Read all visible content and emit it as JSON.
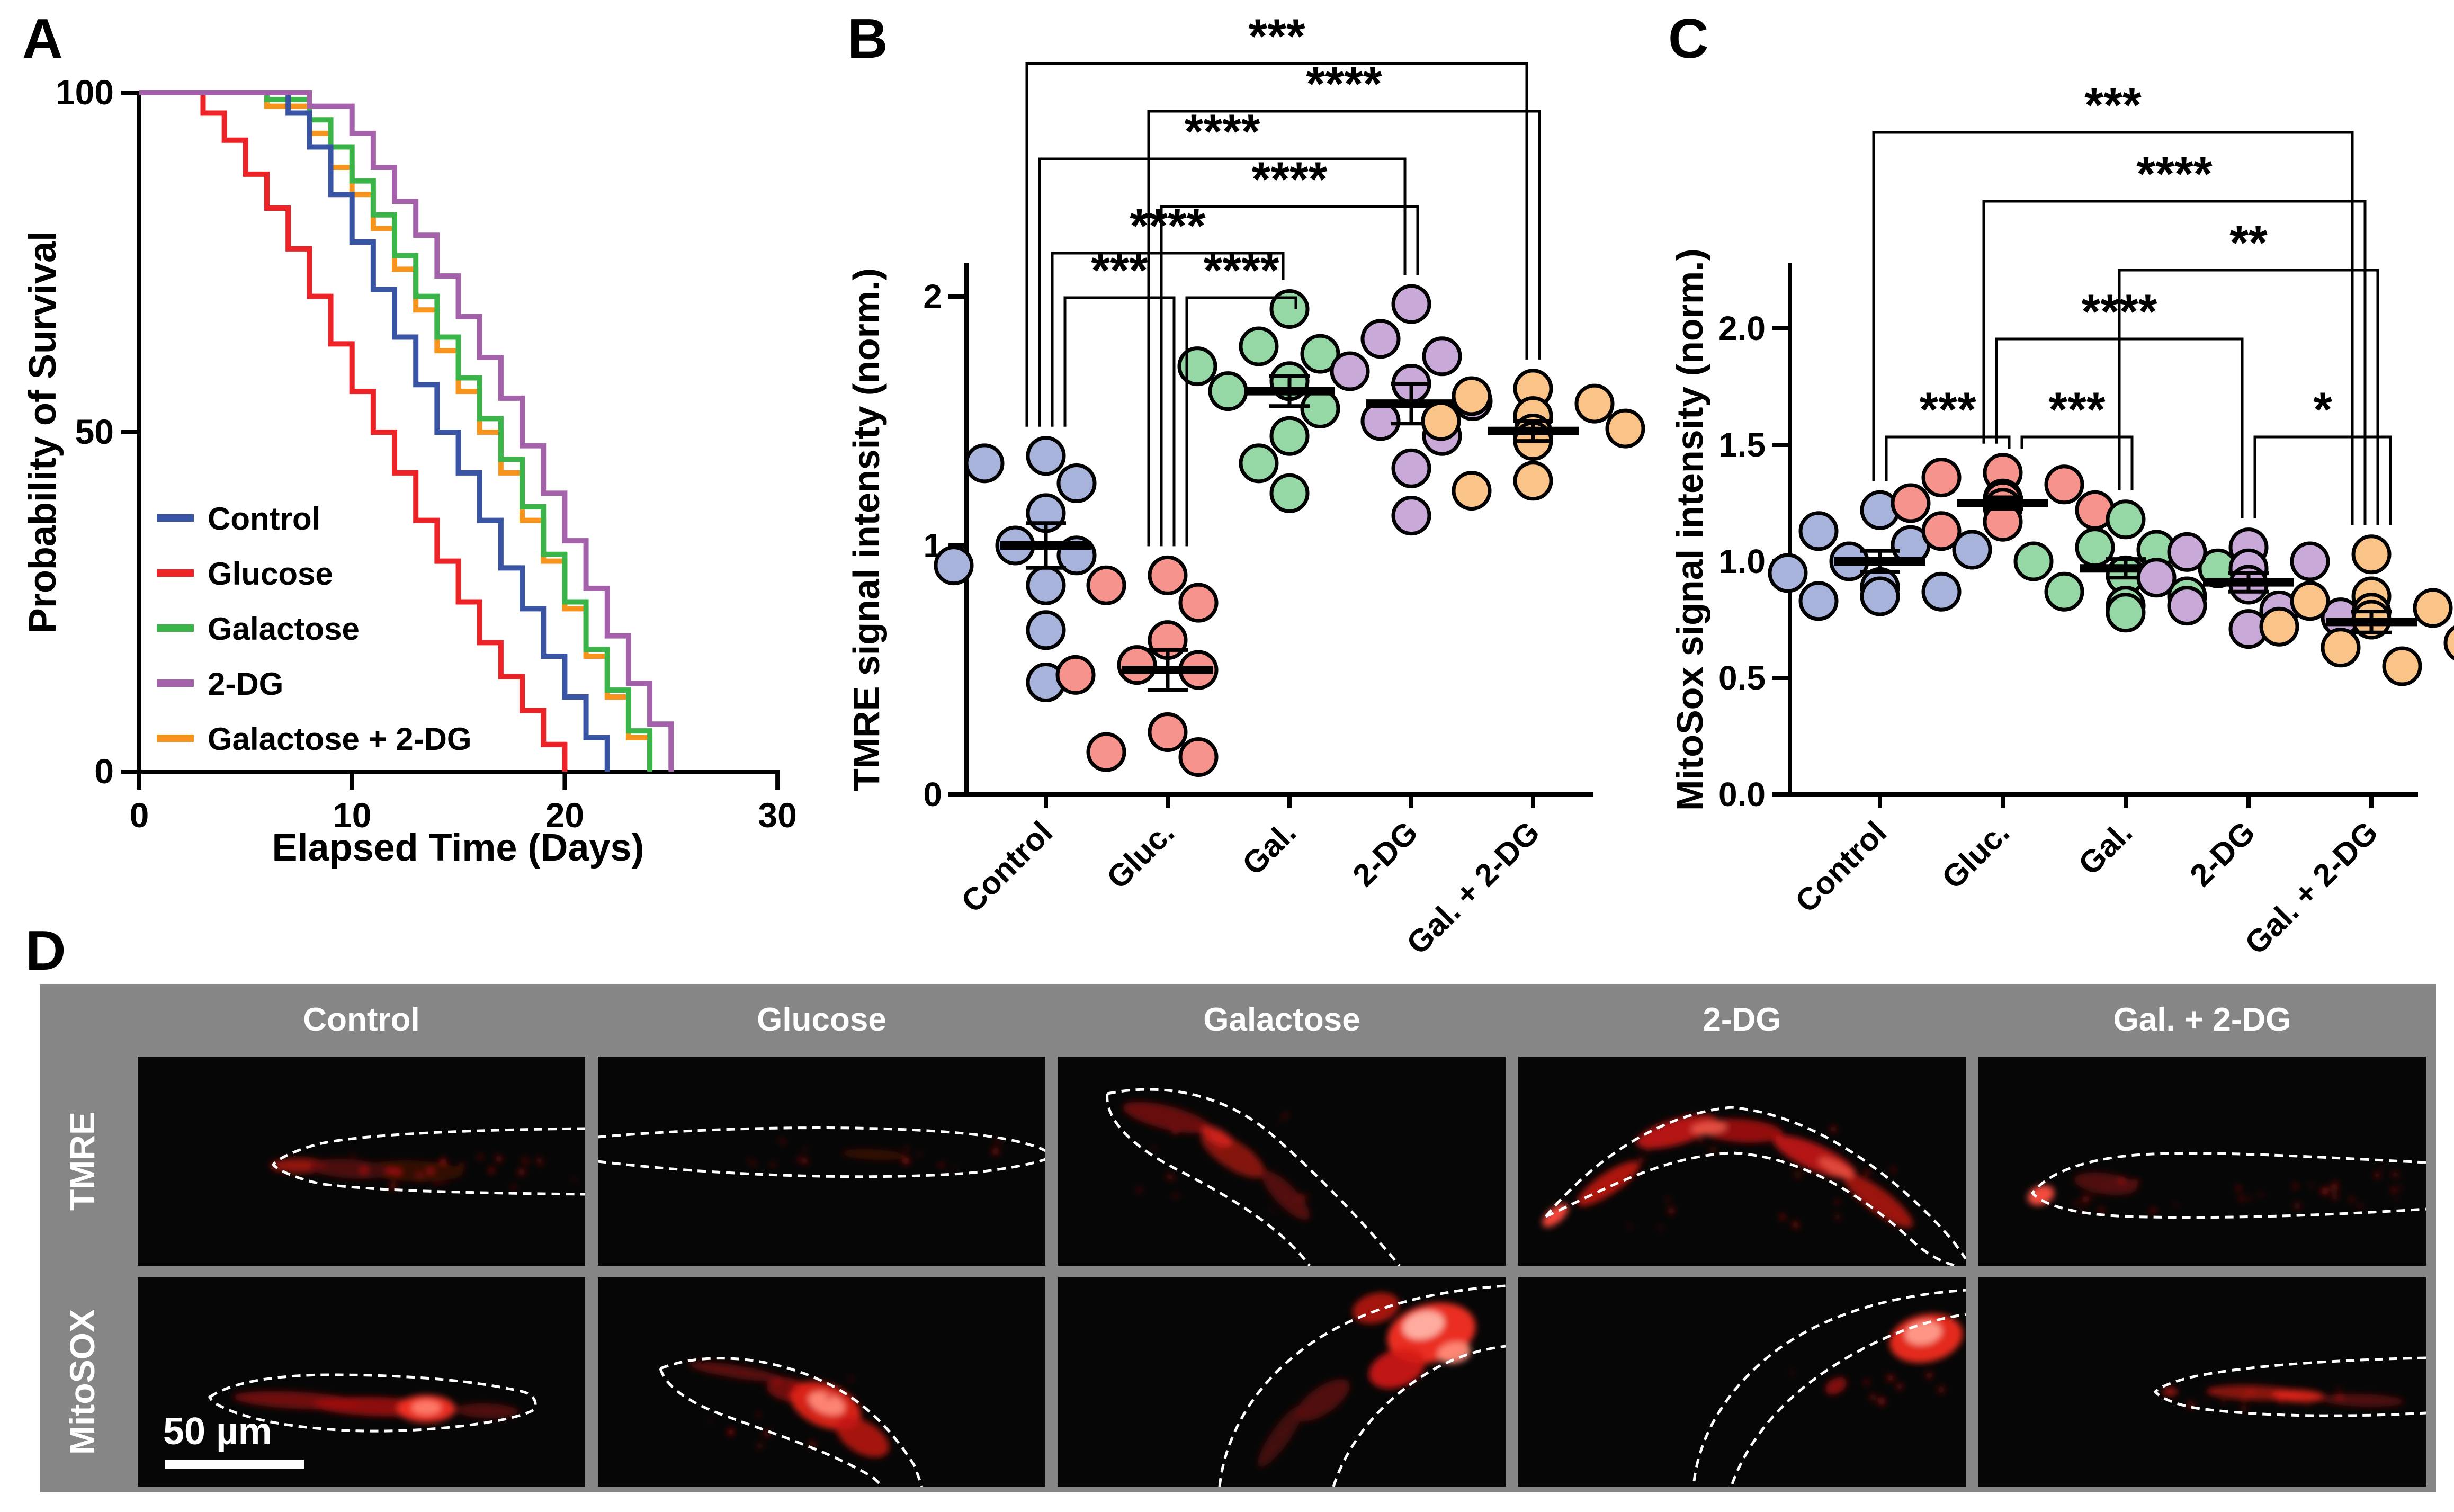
{
  "panels": {
    "a": "A",
    "b": "B",
    "c": "C",
    "d": "D"
  },
  "colors": {
    "control_line": "#3A54A4",
    "glucose_line": "#EC2427",
    "galactose_line": "#3BB54A",
    "dg_line": "#A362AA",
    "gal_dg_line": "#F7941E",
    "control_dot": "#A7B3DA",
    "glucose_dot": "#F6938C",
    "galactose_dot": "#95D8A6",
    "dg_dot": "#C9A9D8",
    "gal_dg_dot": "#FAC489",
    "panel_d_bg": "#868686",
    "micrograph_bg": "#060606"
  },
  "chart_data": [
    {
      "id": "survival",
      "type": "line",
      "title": "",
      "xlabel": "Elapsed Time (Days)",
      "ylabel": "Probability of Survival",
      "xlim": [
        0,
        30
      ],
      "ylim": [
        0,
        100
      ],
      "xticks": [
        0,
        10,
        20,
        30
      ],
      "xtick_labels": [
        "0",
        "10",
        "20",
        "30"
      ],
      "yticks": [
        0,
        50,
        100
      ],
      "ytick_labels": [
        "0",
        "50",
        "100"
      ],
      "grid": false,
      "legend_position": "inside-left",
      "series": [
        {
          "name": "Control",
          "color": "#3A54A4",
          "steps": [
            [
              0,
              100
            ],
            [
              7,
              97
            ],
            [
              8,
              92
            ],
            [
              9,
              85
            ],
            [
              10,
              78
            ],
            [
              11,
              71
            ],
            [
              12,
              64
            ],
            [
              13,
              57
            ],
            [
              14,
              50
            ],
            [
              15,
              44
            ],
            [
              16,
              37
            ],
            [
              17,
              30
            ],
            [
              18,
              24
            ],
            [
              19,
              17
            ],
            [
              20,
              11
            ],
            [
              21,
              5
            ],
            [
              22,
              0
            ]
          ]
        },
        {
          "name": "Glucose",
          "color": "#EC2427",
          "steps": [
            [
              0,
              100
            ],
            [
              3,
              97
            ],
            [
              4,
              93
            ],
            [
              5,
              88
            ],
            [
              6,
              83
            ],
            [
              7,
              77
            ],
            [
              8,
              70
            ],
            [
              9,
              63
            ],
            [
              10,
              56
            ],
            [
              11,
              50
            ],
            [
              12,
              44
            ],
            [
              13,
              37
            ],
            [
              14,
              31
            ],
            [
              15,
              25
            ],
            [
              16,
              19
            ],
            [
              17,
              14
            ],
            [
              18,
              9
            ],
            [
              19,
              4
            ],
            [
              20,
              0
            ]
          ]
        },
        {
          "name": "Galactose",
          "color": "#3BB54A",
          "steps": [
            [
              0,
              100
            ],
            [
              6,
              99
            ],
            [
              8,
              96
            ],
            [
              9,
              92
            ],
            [
              10,
              87
            ],
            [
              11,
              82
            ],
            [
              12,
              76
            ],
            [
              13,
              70
            ],
            [
              14,
              64
            ],
            [
              15,
              58
            ],
            [
              16,
              52
            ],
            [
              17,
              46
            ],
            [
              18,
              39
            ],
            [
              19,
              32
            ],
            [
              20,
              25
            ],
            [
              21,
              18
            ],
            [
              22,
              12
            ],
            [
              23,
              6
            ],
            [
              24,
              0
            ]
          ]
        },
        {
          "name": "2-DG",
          "color": "#A362AA",
          "steps": [
            [
              0,
              100
            ],
            [
              8,
              98
            ],
            [
              10,
              94
            ],
            [
              11,
              89
            ],
            [
              12,
              84
            ],
            [
              13,
              79
            ],
            [
              14,
              73
            ],
            [
              15,
              67
            ],
            [
              16,
              61
            ],
            [
              17,
              55
            ],
            [
              18,
              48
            ],
            [
              19,
              41
            ],
            [
              20,
              34
            ],
            [
              21,
              27
            ],
            [
              22,
              20
            ],
            [
              23,
              13
            ],
            [
              24,
              7
            ],
            [
              25,
              0
            ]
          ]
        },
        {
          "name": "Galactose + 2-DG",
          "color": "#F7941E",
          "steps": [
            [
              0,
              100
            ],
            [
              6,
              98
            ],
            [
              8,
              94
            ],
            [
              9,
              89
            ],
            [
              10,
              85
            ],
            [
              11,
              80
            ],
            [
              12,
              74
            ],
            [
              13,
              68
            ],
            [
              14,
              62
            ],
            [
              15,
              56
            ],
            [
              16,
              50
            ],
            [
              17,
              44
            ],
            [
              18,
              37
            ],
            [
              19,
              31
            ],
            [
              20,
              24
            ],
            [
              21,
              17
            ],
            [
              22,
              11
            ],
            [
              23,
              5
            ],
            [
              24,
              0
            ]
          ]
        }
      ]
    },
    {
      "id": "tmre",
      "type": "scatter",
      "ylabel": "TMRE signal intensity (norm.)",
      "ylim": [
        0,
        2.85
      ],
      "yticks": [
        0,
        1,
        2
      ],
      "ytick_labels": [
        "0",
        "1",
        "2"
      ],
      "categories": [
        "Control",
        "Gluc.",
        "Gal.",
        "2-DG",
        "Gal. + 2-DG"
      ],
      "groups": [
        {
          "name": "Control",
          "dot_color": "#A7B3DA",
          "mean": 1.0,
          "sem": 0.09,
          "values": [
            1.36,
            1.33,
            1.25,
            1.13,
            1.0,
            0.96,
            0.92,
            0.84,
            0.66,
            0.45
          ]
        },
        {
          "name": "Gluc.",
          "dot_color": "#F6938C",
          "mean": 0.5,
          "sem": 0.08,
          "values": [
            0.88,
            0.84,
            0.77,
            0.62,
            0.52,
            0.5,
            0.48,
            0.25,
            0.17,
            0.15
          ]
        },
        {
          "name": "Gal.",
          "dot_color": "#95D8A6",
          "mean": 1.62,
          "sem": 0.06,
          "values": [
            1.95,
            1.8,
            1.77,
            1.72,
            1.66,
            1.62,
            1.55,
            1.44,
            1.33,
            1.21
          ]
        },
        {
          "name": "2-DG",
          "dot_color": "#C9A9D8",
          "mean": 1.57,
          "sem": 0.08,
          "values": [
            1.97,
            1.83,
            1.76,
            1.7,
            1.65,
            1.58,
            1.5,
            1.44,
            1.31,
            1.12
          ]
        },
        {
          "name": "Gal. + 2-DG",
          "dot_color": "#FAC489",
          "mean": 1.46,
          "sem": 0.04,
          "values": [
            1.63,
            1.6,
            1.57,
            1.52,
            1.5,
            1.47,
            1.45,
            1.42,
            1.26,
            1.22
          ]
        }
      ],
      "comparisons": [
        {
          "a": 0,
          "b": 4,
          "label": "***",
          "row": 0
        },
        {
          "a": 1,
          "b": 4,
          "label": "****",
          "row": 1
        },
        {
          "a": 0,
          "b": 3,
          "label": "****",
          "row": 2
        },
        {
          "a": 1,
          "b": 3,
          "label": "****",
          "row": 3
        },
        {
          "a": 0,
          "b": 2,
          "label": "****",
          "row": 4
        },
        {
          "a": 0,
          "b": 1,
          "label": "***",
          "row": 5
        },
        {
          "a": 1,
          "b": 2,
          "label": "****",
          "row": 5
        }
      ]
    },
    {
      "id": "mitosox",
      "type": "scatter",
      "ylabel": "MitoSox signal intensity (norm.)",
      "ylim": [
        0,
        2.3
      ],
      "yticks": [
        0,
        0.5,
        1,
        1.5,
        2
      ],
      "ytick_labels": [
        "0.0",
        "0.5",
        "1.0",
        "1.5",
        "2.0"
      ],
      "categories": [
        "Control",
        "Gluc.",
        "Gal.",
        "2-DG",
        "Gal. + 2-DG"
      ],
      "groups": [
        {
          "name": "Control",
          "dot_color": "#A7B3DA",
          "mean": 1.0,
          "sem": 0.045,
          "values": [
            1.22,
            1.13,
            1.07,
            1.05,
            1.0,
            0.95,
            0.89,
            0.87,
            0.85,
            0.83
          ]
        },
        {
          "name": "Gluc.",
          "dot_color": "#F6938C",
          "mean": 1.25,
          "sem": 0.025,
          "values": [
            1.38,
            1.36,
            1.33,
            1.27,
            1.26,
            1.25,
            1.23,
            1.22,
            1.17,
            1.13
          ]
        },
        {
          "name": "Gal.",
          "dot_color": "#95D8A6",
          "mean": 0.97,
          "sem": 0.04,
          "values": [
            1.18,
            1.06,
            1.05,
            1.0,
            0.97,
            0.94,
            0.87,
            0.85,
            0.81,
            0.78
          ]
        },
        {
          "name": "2-DG",
          "dot_color": "#C9A9D8",
          "mean": 0.91,
          "sem": 0.04,
          "values": [
            1.06,
            1.04,
            1.0,
            0.97,
            0.93,
            0.9,
            0.81,
            0.79,
            0.76,
            0.71
          ]
        },
        {
          "name": "Gal. + 2-DG",
          "dot_color": "#FAC489",
          "mean": 0.74,
          "sem": 0.045,
          "values": [
            1.03,
            0.85,
            0.83,
            0.8,
            0.78,
            0.75,
            0.72,
            0.65,
            0.63,
            0.55
          ]
        }
      ],
      "comparisons": [
        {
          "a": 0,
          "b": 4,
          "label": "***",
          "row": 0
        },
        {
          "a": 1,
          "b": 4,
          "label": "****",
          "row": 1
        },
        {
          "a": 2,
          "b": 4,
          "label": "**",
          "row": 2
        },
        {
          "a": 1,
          "b": 3,
          "label": "****",
          "row": 3
        },
        {
          "a": 0,
          "b": 1,
          "label": "***",
          "row": 4
        },
        {
          "a": 1,
          "b": 2,
          "label": "***",
          "row": 4
        },
        {
          "a": 3,
          "b": 4,
          "label": "*",
          "row": 4
        }
      ]
    }
  ],
  "panel_d": {
    "columns": [
      "Control",
      "Glucose",
      "Galactose",
      "2-DG",
      "Gal. + 2-DG"
    ],
    "rows": [
      "TMRE",
      "MitoSOX"
    ],
    "scale_bar": "50 µm"
  }
}
